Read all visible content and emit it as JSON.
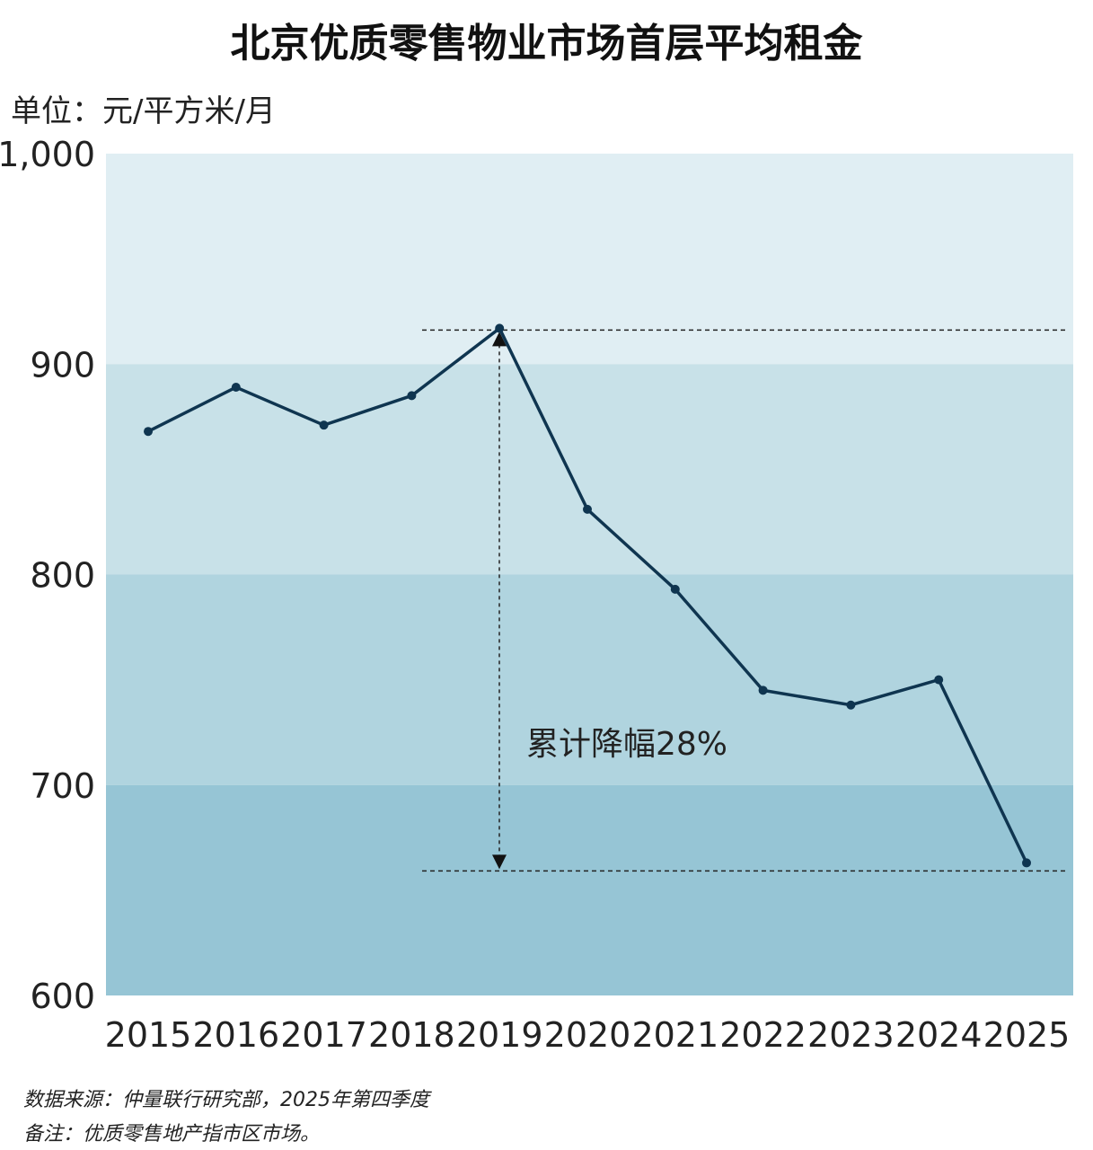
{
  "chart_data": {
    "type": "line",
    "title": "北京优质零售物业市场首层平均租金",
    "ylabel": "单位：元/平方米/月",
    "categories": [
      "2015",
      "2016",
      "2017",
      "2018",
      "2019",
      "2020",
      "2021",
      "2022",
      "2023",
      "2024",
      "2025"
    ],
    "values": [
      868,
      889,
      871,
      885,
      917,
      831,
      793,
      745,
      738,
      750,
      663
    ],
    "ylim": [
      600,
      1000
    ],
    "yticks": [
      600,
      700,
      800,
      900,
      1000
    ],
    "ytick_labels": [
      "600",
      "700",
      "800",
      "900",
      "1,000"
    ],
    "annotation": "累计降幅28%",
    "grid": false,
    "legend": "none",
    "colors": {
      "line": "#0f3550",
      "band_900_1000": "#e0eef3",
      "band_800_900": "#c8e1e8",
      "band_700_800": "#b0d4df",
      "band_600_700": "#96c5d5"
    }
  },
  "footer": {
    "source": "数据来源：仲量联行研究部，2025年第四季度",
    "note": "备注：优质零售地产指市区市场。"
  }
}
